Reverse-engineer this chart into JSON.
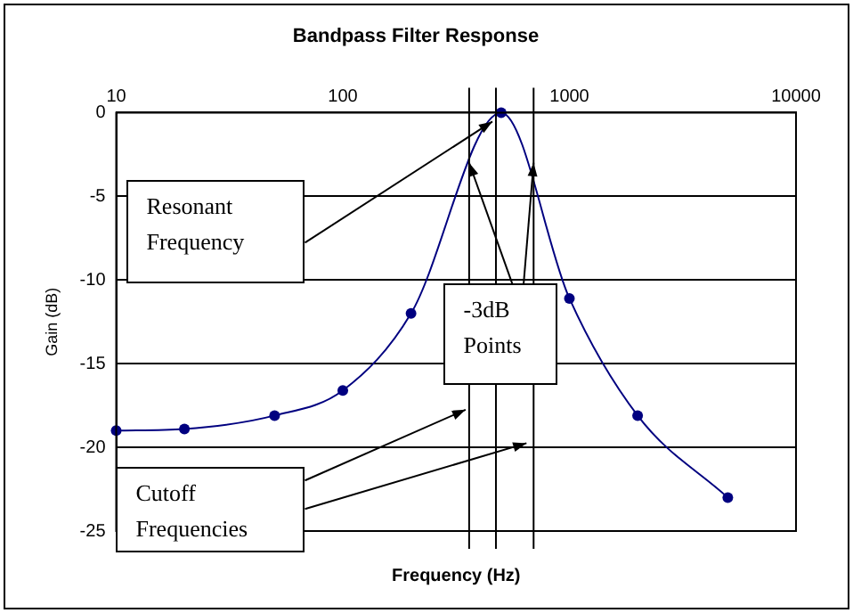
{
  "chart_data": {
    "type": "line",
    "title": "Bandpass Filter Response",
    "xlabel": "Frequency (Hz)",
    "ylabel": "Gain (dB)",
    "log": "x",
    "xlim": [
      10,
      10000
    ],
    "xticks": [
      10,
      100,
      1000,
      10000
    ],
    "ylim": [
      -25,
      0
    ],
    "yticks": [
      0,
      -5,
      -10,
      -15,
      -20,
      -25
    ],
    "grid": "y",
    "legend": false,
    "marker": "circle",
    "series": [
      {
        "color": "#000080",
        "x": [
          10,
          20,
          50,
          100,
          200,
          500,
          1000,
          2000,
          5000
        ],
        "values": [
          -19,
          -18.9,
          -18.1,
          -16.6,
          -12,
          0,
          -11.1,
          -18.1,
          -23
        ]
      }
    ],
    "ref_lines": [
      {
        "axis": "x",
        "value": 361
      },
      {
        "axis": "x",
        "value": 474
      },
      {
        "axis": "x",
        "value": 695
      }
    ],
    "annotations": [
      "Resonant Frequency",
      {
        "text": "-3dB Points",
        "x": 361,
        "y": -3
      },
      "Cutoff Frequencies"
    ]
  }
}
